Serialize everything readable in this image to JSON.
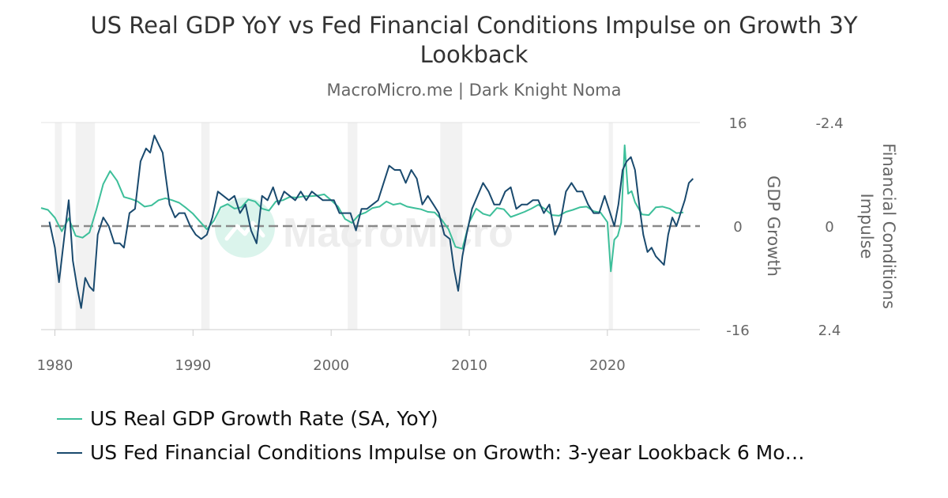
{
  "title": "US Real GDP YoY vs Fed Financial Conditions Impulse on Growth 3Y Lookback",
  "subtitle": "MacroMicro.me | Dark Knight Noma",
  "watermark": "MacroMicro",
  "colors": {
    "gdp": "#3dbf9a",
    "fci": "#1a4a6e",
    "recession": "#f2f2f2",
    "zero_line": "#8a8a8a",
    "grid": "#e3e3e3",
    "axis_text": "#666666"
  },
  "legend": [
    {
      "label": "US Real GDP Growth Rate (SA, YoY)",
      "color": "#3dbf9a"
    },
    {
      "label": "US Fed Financial Conditions Impulse on Growth: 3-year Lookback 6 Mo…",
      "color": "#1a4a6e"
    }
  ],
  "chart_data": {
    "type": "line",
    "x_range": [
      1979.0,
      2026.7
    ],
    "x_ticks": [
      {
        "value": 1980,
        "label": "1980"
      },
      {
        "value": 1990,
        "label": "1990"
      },
      {
        "value": 2000,
        "label": "2000"
      },
      {
        "value": 2010,
        "label": "2010"
      },
      {
        "value": 2020,
        "label": "2020"
      }
    ],
    "y_left": {
      "label": "GDP Growth",
      "range": [
        -16,
        16
      ],
      "ticks": [
        {
          "value": 16,
          "label": "16"
        },
        {
          "value": 0,
          "label": "0"
        },
        {
          "value": -16,
          "label": "-16"
        }
      ]
    },
    "y_right": {
      "label": "Financial Conditions Impulse",
      "range": [
        2.4,
        -2.4
      ],
      "inverted": true,
      "ticks": [
        {
          "value": -2.4,
          "label": "-2.4"
        },
        {
          "value": 0,
          "label": "0"
        },
        {
          "value": 2.4,
          "label": "2.4"
        }
      ]
    },
    "recessions": [
      [
        1980.0,
        1980.5
      ],
      [
        1981.5,
        1982.9
      ],
      [
        1990.6,
        1991.2
      ],
      [
        2001.2,
        2001.9
      ],
      [
        2007.9,
        2009.5
      ],
      [
        2020.1,
        2020.4
      ]
    ],
    "zero_line": true,
    "grid": "horizontal",
    "legend_position": "bottom-left",
    "series": [
      {
        "name": "US Real GDP Growth Rate (SA, YoY)",
        "axis": "left",
        "x": [
          1979.0,
          1979.5,
          1980.0,
          1980.5,
          1981.0,
          1981.5,
          1982.0,
          1982.5,
          1983.0,
          1983.5,
          1984.0,
          1984.5,
          1985.0,
          1985.5,
          1986.0,
          1986.5,
          1987.0,
          1987.5,
          1988.0,
          1988.5,
          1989.0,
          1989.5,
          1990.0,
          1990.5,
          1991.0,
          1991.5,
          1992.0,
          1992.5,
          1993.0,
          1993.5,
          1994.0,
          1994.5,
          1995.0,
          1995.5,
          1996.0,
          1996.5,
          1997.0,
          1997.5,
          1998.0,
          1998.5,
          1999.0,
          1999.5,
          2000.0,
          2000.5,
          2001.0,
          2001.5,
          2002.0,
          2002.5,
          2003.0,
          2003.5,
          2004.0,
          2004.5,
          2005.0,
          2005.5,
          2006.0,
          2006.5,
          2007.0,
          2007.5,
          2008.0,
          2008.5,
          2009.0,
          2009.5,
          2010.0,
          2010.5,
          2011.0,
          2011.5,
          2012.0,
          2012.5,
          2013.0,
          2013.5,
          2014.0,
          2014.5,
          2015.0,
          2015.5,
          2016.0,
          2016.5,
          2017.0,
          2017.5,
          2018.0,
          2018.5,
          2019.0,
          2019.5,
          2020.0,
          2020.25,
          2020.5,
          2020.75,
          2021.0,
          2021.25,
          2021.5,
          2021.75,
          2022.0,
          2022.5,
          2023.0,
          2023.5,
          2024.0,
          2024.5,
          2025.0,
          2025.5
        ],
        "values": [
          2.8,
          2.5,
          1.3,
          -0.8,
          1.2,
          -1.5,
          -1.8,
          -1.0,
          2.5,
          6.5,
          8.5,
          7.0,
          4.5,
          4.2,
          3.8,
          3.0,
          3.2,
          4.0,
          4.3,
          4.0,
          3.6,
          2.8,
          1.9,
          0.7,
          -0.5,
          0.8,
          2.9,
          3.4,
          2.7,
          2.9,
          4.1,
          3.8,
          2.7,
          2.4,
          3.8,
          4.0,
          4.5,
          4.4,
          4.6,
          4.6,
          4.7,
          4.9,
          4.0,
          3.0,
          1.1,
          0.5,
          1.7,
          2.1,
          2.8,
          3.0,
          3.8,
          3.3,
          3.5,
          3.0,
          2.8,
          2.6,
          2.2,
          2.1,
          1.0,
          -0.5,
          -3.2,
          -3.5,
          0.6,
          2.7,
          1.9,
          1.6,
          2.8,
          2.6,
          1.4,
          1.8,
          2.2,
          2.7,
          3.3,
          2.6,
          1.7,
          1.6,
          2.2,
          2.5,
          2.9,
          3.0,
          2.3,
          2.1,
          0.6,
          -7.0,
          -2.1,
          -1.5,
          0.5,
          12.5,
          5.0,
          5.4,
          3.7,
          1.8,
          1.7,
          2.9,
          3.0,
          2.7,
          2.0,
          2.1
        ]
      },
      {
        "name": "US Fed Financial Conditions Impulse on Growth: 3-year Lookback 6 Mo…",
        "axis": "right",
        "x": [
          1979.6,
          1980.0,
          1980.3,
          1980.7,
          1981.0,
          1981.3,
          1981.6,
          1981.9,
          1982.2,
          1982.5,
          1982.8,
          1983.1,
          1983.5,
          1983.9,
          1984.3,
          1984.7,
          1985.0,
          1985.4,
          1985.8,
          1986.2,
          1986.6,
          1986.9,
          1987.2,
          1987.5,
          1987.8,
          1988.0,
          1988.3,
          1988.7,
          1989.0,
          1989.4,
          1989.8,
          1990.2,
          1990.6,
          1991.0,
          1991.4,
          1991.8,
          1992.2,
          1992.6,
          1993.0,
          1993.4,
          1993.8,
          1994.2,
          1994.6,
          1995.0,
          1995.4,
          1995.8,
          1996.2,
          1996.6,
          1997.0,
          1997.4,
          1997.8,
          1998.2,
          1998.6,
          1999.0,
          1999.4,
          1999.8,
          2000.2,
          2000.6,
          2001.0,
          2001.4,
          2001.8,
          2002.2,
          2002.6,
          2003.0,
          2003.4,
          2003.8,
          2004.2,
          2004.6,
          2005.0,
          2005.4,
          2005.8,
          2006.2,
          2006.6,
          2007.0,
          2007.4,
          2007.8,
          2008.2,
          2008.6,
          2008.9,
          2009.2,
          2009.5,
          2009.8,
          2010.2,
          2010.6,
          2011.0,
          2011.4,
          2011.8,
          2012.2,
          2012.6,
          2013.0,
          2013.4,
          2013.8,
          2014.2,
          2014.6,
          2015.0,
          2015.4,
          2015.8,
          2016.2,
          2016.6,
          2017.0,
          2017.4,
          2017.8,
          2018.2,
          2018.6,
          2019.0,
          2019.4,
          2019.8,
          2020.2,
          2020.5,
          2020.8,
          2021.1,
          2021.4,
          2021.7,
          2022.0,
          2022.3,
          2022.6,
          2022.9,
          2023.2,
          2023.5,
          2023.8,
          2024.1,
          2024.4,
          2024.7,
          2025.0,
          2025.3,
          2025.6,
          2025.9,
          2026.2
        ],
        "values": [
          -0.1,
          0.5,
          1.3,
          0.2,
          -0.6,
          0.8,
          1.4,
          1.9,
          1.2,
          1.4,
          1.5,
          0.2,
          -0.2,
          0.0,
          0.4,
          0.4,
          0.5,
          -0.3,
          -0.4,
          -1.5,
          -1.8,
          -1.7,
          -2.1,
          -1.9,
          -1.7,
          -1.2,
          -0.5,
          -0.2,
          -0.3,
          -0.3,
          0.0,
          0.2,
          0.3,
          0.2,
          -0.2,
          -0.8,
          -0.7,
          -0.6,
          -0.7,
          -0.3,
          -0.5,
          0.1,
          0.4,
          -0.7,
          -0.6,
          -0.9,
          -0.5,
          -0.8,
          -0.7,
          -0.6,
          -0.8,
          -0.6,
          -0.8,
          -0.7,
          -0.6,
          -0.6,
          -0.6,
          -0.3,
          -0.3,
          -0.3,
          0.1,
          -0.4,
          -0.4,
          -0.5,
          -0.6,
          -1.0,
          -1.4,
          -1.3,
          -1.3,
          -1.0,
          -1.3,
          -1.1,
          -0.5,
          -0.7,
          -0.5,
          -0.3,
          0.2,
          0.3,
          1.0,
          1.5,
          0.7,
          0.2,
          -0.4,
          -0.7,
          -1.0,
          -0.8,
          -0.5,
          -0.5,
          -0.8,
          -0.9,
          -0.4,
          -0.5,
          -0.5,
          -0.6,
          -0.6,
          -0.3,
          -0.5,
          0.2,
          -0.1,
          -0.8,
          -1.0,
          -0.8,
          -0.8,
          -0.5,
          -0.3,
          -0.3,
          -0.7,
          -0.3,
          0.0,
          -0.5,
          -1.3,
          -1.5,
          -1.6,
          -1.3,
          -0.5,
          0.2,
          0.6,
          0.5,
          0.7,
          0.8,
          0.9,
          0.2,
          -0.2,
          0.0,
          -0.3,
          -0.6,
          -1.0,
          -1.1
        ]
      }
    ]
  }
}
